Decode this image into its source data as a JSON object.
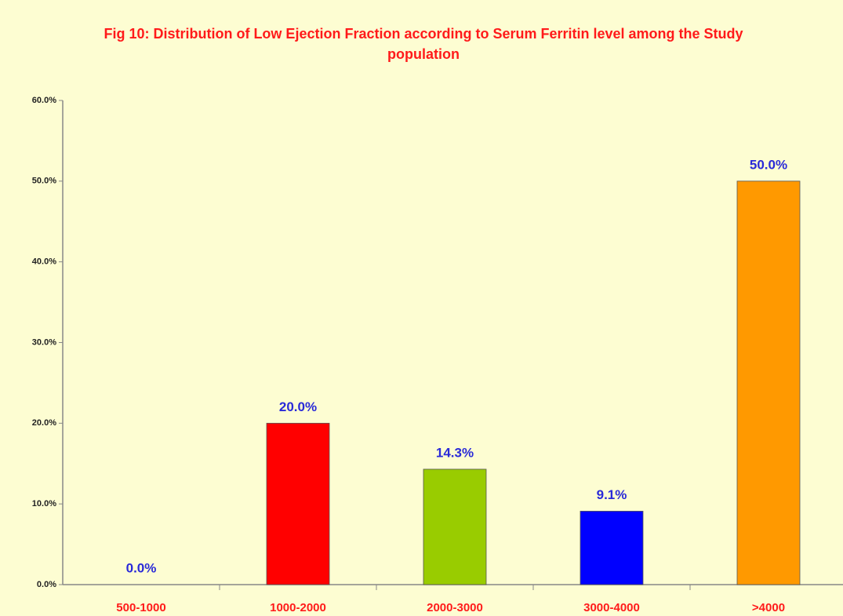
{
  "chart_data": {
    "type": "bar",
    "title": "Fig 10: Distribution of Low Ejection Fraction according to Serum Ferritin level among the Study population",
    "categories": [
      "500-1000",
      "1000-2000",
      "2000-3000",
      "3000-4000",
      ">4000"
    ],
    "values": [
      0,
      20,
      14.3,
      9.1,
      50
    ],
    "value_labels": [
      "0.0%",
      "20.0%",
      "14.3%",
      "9.1%",
      "50.0%"
    ],
    "colors": [
      null,
      "#ff0000",
      "#99cc00",
      "#0000ff",
      "#ff9900"
    ],
    "ylim": [
      0,
      60
    ],
    "yticks": [
      {
        "value": 0,
        "label": "0.0%"
      },
      {
        "value": 10,
        "label": "10.0%"
      },
      {
        "value": 20,
        "label": "20.0%"
      },
      {
        "value": 30,
        "label": "30.0%"
      },
      {
        "value": 40,
        "label": "40.0%"
      },
      {
        "value": 50,
        "label": "50.0%"
      },
      {
        "value": 60,
        "label": "60.0%"
      }
    ],
    "grid": false
  }
}
